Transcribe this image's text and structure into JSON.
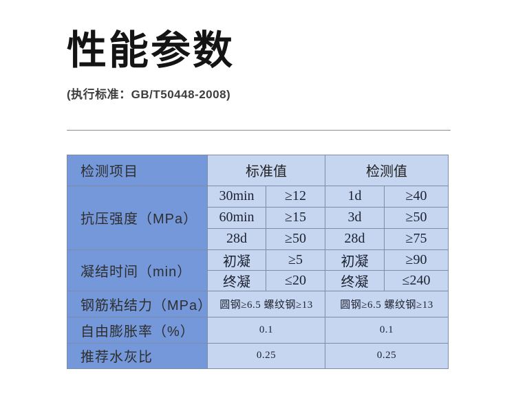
{
  "page": {
    "title": "性能参数",
    "subtitle": "(执行标准：GB/T50448-2008)"
  },
  "colors": {
    "dark_blue": "#7598da",
    "light_blue": "#c6d6f0",
    "border": "#7d8ca6",
    "divider": "#8f8f8f"
  },
  "table": {
    "header": [
      "检测项目",
      "标准值",
      "检测值"
    ],
    "rows": [
      {
        "label": "抗压强度（MPa）",
        "sub": [
          [
            "30min",
            "≥12",
            "1d",
            "≥40"
          ],
          [
            "60min",
            "≥15",
            "3d",
            "≥50"
          ],
          [
            "28d",
            "≥50",
            "28d",
            "≥75"
          ]
        ]
      },
      {
        "label": "凝结时间（min）",
        "sub": [
          [
            "初凝",
            "≥5",
            "初凝",
            "≥90"
          ],
          [
            "终凝",
            "≤20",
            "终凝",
            "≤240"
          ]
        ]
      },
      {
        "label": "钢筋粘结力（MPa）",
        "merged": [
          "圆钢≥6.5 螺纹钢≥13",
          "圆钢≥6.5 螺纹钢≥13"
        ]
      },
      {
        "label": "自由膨胀率（%）",
        "merged": [
          "0.1",
          "0.1"
        ]
      },
      {
        "label": "推荐水灰比",
        "merged": [
          "0.25",
          "0.25"
        ]
      }
    ]
  }
}
